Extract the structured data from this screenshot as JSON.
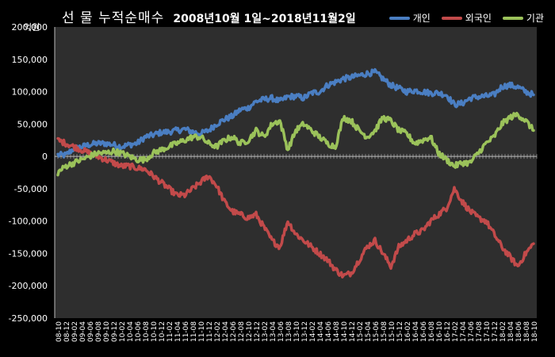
{
  "chart_data": {
    "type": "line",
    "title": "선 물 누적순매수",
    "subtitle": "2008년10월 1일~2018년11월2일",
    "ylabel": "억원",
    "xlabel": "",
    "ylim": [
      -250000,
      200000
    ],
    "yticks": [
      "200,000",
      "150,000",
      "100,000",
      "50,000",
      "0",
      "-50,000",
      "-100,000",
      "-150,000",
      "-200,000",
      "-250,000"
    ],
    "ytick_values": [
      200000,
      150000,
      100000,
      50000,
      0,
      -50000,
      -100000,
      -150000,
      -200000,
      -250000
    ],
    "x": [
      "08-10",
      "08-12",
      "09-02",
      "09-04",
      "09-06",
      "09-08",
      "09-10",
      "09-12",
      "10-02",
      "10-04",
      "10-06",
      "10-08",
      "10-10",
      "10-12",
      "11-02",
      "11-04",
      "11-06",
      "11-08",
      "11-10",
      "11-12",
      "12-02",
      "12-04",
      "12-06",
      "12-08",
      "12-10",
      "12-12",
      "13-02",
      "13-04",
      "13-06",
      "13-08",
      "13-10",
      "13-12",
      "14-02",
      "14-04",
      "14-06",
      "14-08",
      "14-10",
      "14-12",
      "15-02",
      "15-04",
      "15-06",
      "15-08",
      "15-10",
      "15-12",
      "16-02",
      "16-04",
      "16-06",
      "16-08",
      "16-10",
      "16-12",
      "17-02",
      "17-04",
      "17-06",
      "17-08",
      "17-10",
      "17-12",
      "18-02",
      "18-04",
      "18-06",
      "18-08",
      "18-10"
    ],
    "grid": false,
    "legend_position": "top-right",
    "series": [
      {
        "name": "개인",
        "color": "#4A7EC2",
        "values": [
          2000,
          2000,
          12000,
          15000,
          18000,
          20000,
          20000,
          18000,
          15000,
          18000,
          20000,
          30000,
          33000,
          37000,
          38000,
          40000,
          42000,
          38000,
          35000,
          40000,
          50000,
          57000,
          62000,
          72000,
          75000,
          85000,
          88000,
          90000,
          85000,
          92000,
          93000,
          90000,
          98000,
          100000,
          110000,
          115000,
          120000,
          122000,
          125000,
          128000,
          130000,
          120000,
          110000,
          105000,
          100000,
          102000,
          100000,
          98000,
          98000,
          95000,
          80000,
          82000,
          90000,
          92000,
          93000,
          95000,
          108000,
          110000,
          107000,
          100000,
          95000
        ]
      },
      {
        "name": "외국인",
        "color": "#C24A4A",
        "values": [
          25000,
          20000,
          15000,
          10000,
          5000,
          0,
          -5000,
          -10000,
          -15000,
          -15000,
          -18000,
          -20000,
          -30000,
          -40000,
          -50000,
          -60000,
          -60000,
          -50000,
          -40000,
          -30000,
          -45000,
          -70000,
          -85000,
          -90000,
          -95000,
          -90000,
          -110000,
          -130000,
          -140000,
          -100000,
          -120000,
          -130000,
          -140000,
          -150000,
          -160000,
          -175000,
          -185000,
          -180000,
          -160000,
          -140000,
          -130000,
          -150000,
          -170000,
          -140000,
          -130000,
          -120000,
          -115000,
          -100000,
          -90000,
          -80000,
          -50000,
          -70000,
          -85000,
          -95000,
          -100000,
          -120000,
          -140000,
          -155000,
          -170000,
          -150000,
          -135000
        ]
      },
      {
        "name": "기관",
        "color": "#9BC25A",
        "values": [
          -25000,
          -15000,
          -10000,
          -5000,
          0,
          5000,
          5000,
          8000,
          5000,
          0,
          -5000,
          -5000,
          5000,
          10000,
          15000,
          20000,
          25000,
          30000,
          30000,
          20000,
          15000,
          25000,
          30000,
          20000,
          25000,
          40000,
          30000,
          50000,
          55000,
          10000,
          40000,
          50000,
          40000,
          30000,
          20000,
          15000,
          60000,
          55000,
          40000,
          30000,
          40000,
          60000,
          55000,
          40000,
          35000,
          20000,
          25000,
          30000,
          5000,
          -5000,
          -15000,
          -10000,
          -10000,
          5000,
          20000,
          30000,
          50000,
          60000,
          65000,
          55000,
          40000
        ]
      }
    ]
  }
}
